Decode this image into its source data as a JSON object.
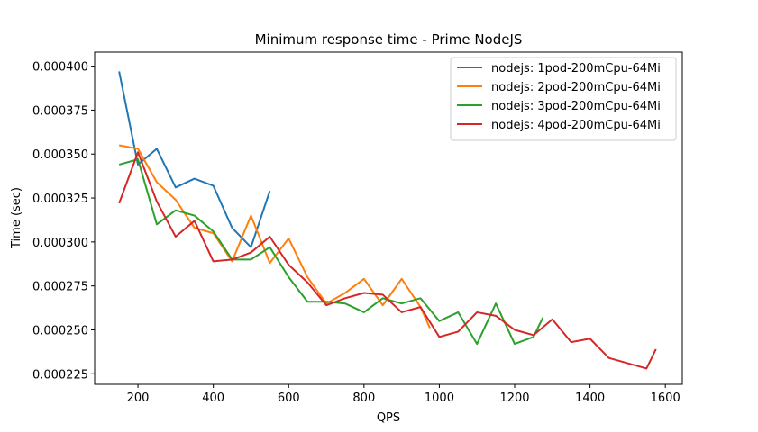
{
  "chart_data": {
    "type": "line",
    "title": "Minimum response time - Prime NodeJS",
    "xlabel": "QPS",
    "ylabel": "Time (sec)",
    "xlim": [
      85,
      1645
    ],
    "ylim": [
      0.000219,
      0.000408
    ],
    "xticks": [
      200,
      400,
      600,
      800,
      1000,
      1200,
      1400,
      1600
    ],
    "yticks": [
      0.000225,
      0.00025,
      0.000275,
      0.0003,
      0.000325,
      0.00035,
      0.000375,
      0.0004
    ],
    "ytick_labels": [
      "0.000225",
      "0.000250",
      "0.000275",
      "0.000300",
      "0.000325",
      "0.000350",
      "0.000375",
      "0.000400"
    ],
    "grid": false,
    "legend_position": "top-right",
    "series": [
      {
        "name": "nodejs: 1pod-200mCpu-64Mi",
        "color": "#1f77b4",
        "x": [
          150,
          200,
          250,
          300,
          350,
          400,
          450,
          500,
          550
        ],
        "y": [
          0.000397,
          0.000344,
          0.000353,
          0.000331,
          0.000336,
          0.000332,
          0.000308,
          0.000297,
          0.000329
        ]
      },
      {
        "name": "nodejs: 2pod-200mCpu-64Mi",
        "color": "#ff7f0e",
        "x": [
          150,
          200,
          250,
          300,
          350,
          400,
          450,
          500,
          550,
          600,
          650,
          700,
          750,
          800,
          850,
          900,
          950,
          975
        ],
        "y": [
          0.000355,
          0.000353,
          0.000334,
          0.000324,
          0.000308,
          0.000305,
          0.000289,
          0.000315,
          0.000288,
          0.000302,
          0.00028,
          0.000265,
          0.000271,
          0.000279,
          0.000264,
          0.000279,
          0.000263,
          0.000251
        ]
      },
      {
        "name": "nodejs: 3pod-200mCpu-64Mi",
        "color": "#2ca02c",
        "x": [
          150,
          200,
          250,
          300,
          350,
          400,
          450,
          500,
          550,
          600,
          650,
          700,
          750,
          800,
          850,
          900,
          950,
          1000,
          1050,
          1100,
          1150,
          1200,
          1250,
          1275
        ],
        "y": [
          0.000344,
          0.000347,
          0.00031,
          0.000318,
          0.000315,
          0.000306,
          0.00029,
          0.00029,
          0.000297,
          0.00028,
          0.000266,
          0.000266,
          0.000265,
          0.00026,
          0.000268,
          0.000265,
          0.000268,
          0.000255,
          0.00026,
          0.000242,
          0.000265,
          0.000242,
          0.000246,
          0.000257
        ]
      },
      {
        "name": "nodejs: 4pod-200mCpu-64Mi",
        "color": "#d62728",
        "x": [
          150,
          200,
          250,
          300,
          350,
          400,
          450,
          500,
          550,
          600,
          650,
          700,
          750,
          800,
          850,
          900,
          950,
          1000,
          1050,
          1100,
          1150,
          1200,
          1250,
          1300,
          1350,
          1400,
          1450,
          1500,
          1550,
          1575
        ],
        "y": [
          0.000322,
          0.000351,
          0.000323,
          0.000303,
          0.000312,
          0.000289,
          0.00029,
          0.000294,
          0.000303,
          0.000287,
          0.000277,
          0.000264,
          0.000268,
          0.000271,
          0.00027,
          0.00026,
          0.000263,
          0.000246,
          0.000249,
          0.00026,
          0.000258,
          0.00025,
          0.000247,
          0.000256,
          0.000243,
          0.000245,
          0.000234,
          0.000231,
          0.000228,
          0.000239
        ]
      }
    ]
  }
}
